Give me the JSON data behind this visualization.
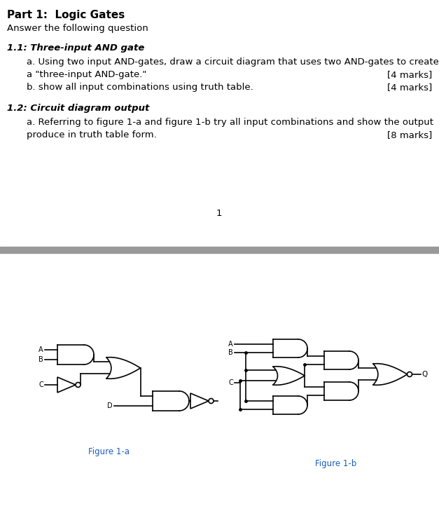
{
  "title": "Part 1:  Logic Gates",
  "subtitle": "Answer the following question",
  "section1_title": "1.1: Three-input AND gate",
  "q1a_line1": "a. Using two input AND-gates, draw a circuit diagram that uses two AND-gates to create",
  "q1a_line2": "a \"three-input AND-gate.\"",
  "q1a_marks": "[4 marks]",
  "q1b": "b. show all input combinations using truth table.",
  "q1b_marks": "[4 marks]",
  "section2_title": "1.2: Circuit diagram output",
  "q2a_line1": "a. Referring to figure 1-a and figure 1-b try all input combinations and show the output",
  "q2a_line2": "produce in truth table form.",
  "q2a_marks": "[8 marks]",
  "page_num": "1",
  "fig1a_label": "Figure 1-a",
  "fig1b_label": "Figure 1-b",
  "separator_color": "#999999",
  "text_color": "#000000",
  "blue_color": "#1a5eb8",
  "bg_color": "#ffffff",
  "title_fontsize": 11,
  "body_fontsize": 9.5,
  "section_fontsize": 9.5
}
